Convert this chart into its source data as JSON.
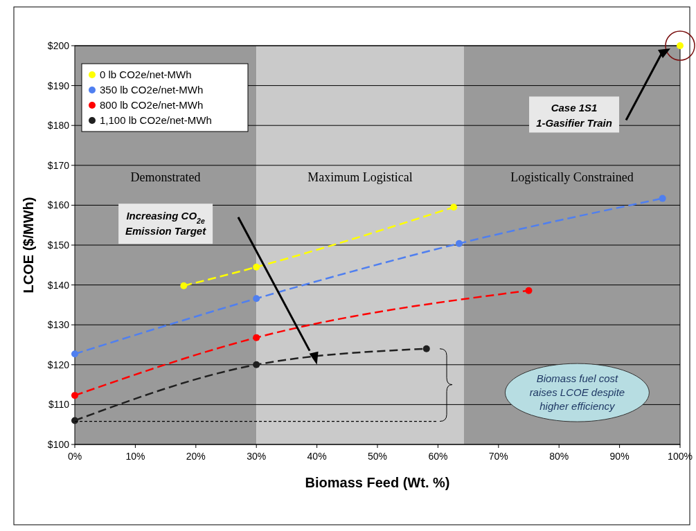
{
  "chart_data": {
    "type": "line",
    "xlabel": "Biomass Feed (Wt. %)",
    "ylabel": "LCOE ($/MWh)",
    "xlim": [
      0,
      100
    ],
    "xticks": [
      {
        "value": 0,
        "label": "0%"
      },
      {
        "value": 10,
        "label": "10%"
      },
      {
        "value": 20,
        "label": "20%"
      },
      {
        "value": 30,
        "label": "30%"
      },
      {
        "value": 40,
        "label": "40%"
      },
      {
        "value": 50,
        "label": "50%"
      },
      {
        "value": 60,
        "label": "60%"
      },
      {
        "value": 70,
        "label": "70%"
      },
      {
        "value": 80,
        "label": "80%"
      },
      {
        "value": 90,
        "label": "90%"
      },
      {
        "value": 100,
        "label": "100%"
      }
    ],
    "ylim": [
      100,
      200
    ],
    "yticks": [
      {
        "value": 100,
        "label": "$100"
      },
      {
        "value": 110,
        "label": "$110"
      },
      {
        "value": 120,
        "label": "$120"
      },
      {
        "value": 130,
        "label": "$130"
      },
      {
        "value": 140,
        "label": "$140"
      },
      {
        "value": 150,
        "label": "$150"
      },
      {
        "value": 160,
        "label": "$160"
      },
      {
        "value": 170,
        "label": "$170"
      },
      {
        "value": 180,
        "label": "$180"
      },
      {
        "value": 190,
        "label": "$190"
      },
      {
        "value": 200,
        "label": "$200"
      }
    ],
    "grid": "y",
    "legend": "top left",
    "marker": "circle",
    "line_style": "dashed",
    "bands": [
      {
        "axis": "x",
        "from": 0,
        "to": 30,
        "label": "Demonstrated",
        "color": "#9a9a9a"
      },
      {
        "axis": "x",
        "from": 30,
        "to": 64.3,
        "label": "Maximum Logistical",
        "color": "#cacaca"
      },
      {
        "axis": "x",
        "from": 64.3,
        "to": 100,
        "label": "Logistically Constrained",
        "color": "#9a9a9a"
      }
    ],
    "series": [
      {
        "name": "0 lb CO2e/net-MWh",
        "color": "#ffff00",
        "x": [
          18,
          30,
          62.6
        ],
        "values": [
          139.8,
          144.5,
          159.5
        ]
      },
      {
        "name": "350 lb CO2e/net-MWh",
        "color": "#4f7ff0",
        "x": [
          0,
          30,
          63.5,
          97.1
        ],
        "values": [
          122.7,
          136.6,
          150.4,
          161.7
        ]
      },
      {
        "name": "800 lb CO2e/net-MWh",
        "color": "#ff0000",
        "x": [
          0,
          30,
          75
        ],
        "values": [
          112.3,
          126.8,
          138.6
        ]
      },
      {
        "name": "1,100 lb CO2e/net-MWh",
        "color": "#202020",
        "x": [
          0,
          30,
          58.1
        ],
        "values": [
          106,
          120,
          124
        ]
      },
      {
        "type": "scatter",
        "color": "#ffff00",
        "x": [
          100
        ],
        "values": [
          200
        ]
      },
      {
        "type": "line",
        "color": "#000000",
        "marker": "none",
        "line_style": "dotted",
        "x": [
          0,
          60
        ],
        "values": [
          105.8,
          105.8
        ]
      }
    ],
    "annotations": [
      "Case 1S1\n1-Gasifier Train",
      "Increasing CO$_{2e}$\nEmission Target",
      "Biomass fuel cost\nraises LCOE despite\nhigher efficiency"
    ]
  }
}
